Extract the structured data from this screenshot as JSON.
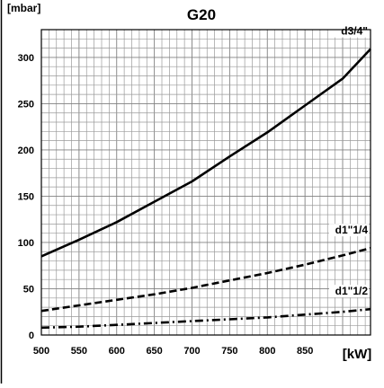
{
  "chart_data": {
    "type": "line",
    "title": "G20",
    "ylabel": "[mbar]",
    "xlabel": "[kW]",
    "xlim": [
      500,
      937
    ],
    "ylim": [
      0,
      330
    ],
    "x_ticks": [
      500,
      550,
      600,
      650,
      700,
      750,
      800,
      850
    ],
    "x_tick_labels": [
      "500",
      "550",
      "600",
      "650",
      "700",
      "750",
      "800",
      "850"
    ],
    "y_ticks": [
      0,
      50,
      100,
      150,
      200,
      250,
      300
    ],
    "y_tick_labels": [
      "0",
      "50",
      "100",
      "150",
      "200",
      "250",
      "300"
    ],
    "grid": true,
    "legend": "none",
    "series": [
      {
        "name": "d3/4\"",
        "style": "solid",
        "x": [
          500,
          550,
          600,
          650,
          700,
          750,
          800,
          850,
          900,
          937
        ],
        "y": [
          85,
          103,
          122,
          144,
          166,
          193,
          219,
          248,
          277,
          309
        ]
      },
      {
        "name": "d1\"1/4",
        "style": "dashed",
        "x": [
          500,
          550,
          600,
          650,
          700,
          750,
          800,
          850,
          900,
          937
        ],
        "y": [
          26,
          32,
          38,
          44,
          51,
          59,
          67,
          76,
          86,
          94
        ]
      },
      {
        "name": "d1\"1/2",
        "style": "dashdot",
        "x": [
          500,
          550,
          600,
          650,
          700,
          750,
          800,
          850,
          900,
          937
        ],
        "y": [
          8,
          9,
          11,
          13,
          15,
          17,
          19,
          22,
          25,
          28
        ]
      }
    ]
  }
}
